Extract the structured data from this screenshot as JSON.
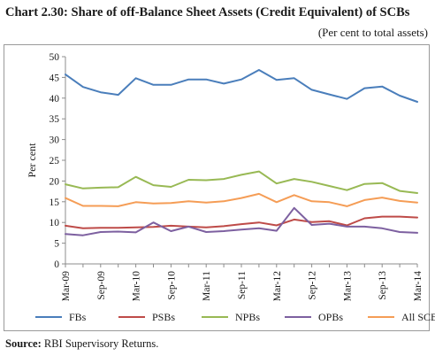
{
  "header": {
    "title": "Chart 2.30: Share of off-Balance Sheet Assets (Credit Equivalent) of SCBs",
    "subtitle": "(Per cent to total assets)"
  },
  "footer": {
    "source_label": "Source:",
    "source_text": " RBI Supervisory Returns."
  },
  "chart_data": {
    "type": "line",
    "title": "Chart 2.30: Share of off-Balance Sheet Assets (Credit Equivalent) of SCBs",
    "subtitle": "(Per cent to total assets)",
    "ylabel": "Per cent",
    "xlabel": "",
    "ylim": [
      0,
      50
    ],
    "yticks": [
      0,
      5,
      10,
      15,
      20,
      25,
      30,
      35,
      40,
      45,
      50
    ],
    "grid": false,
    "legend_position": "bottom",
    "x": [
      "Mar-09",
      "Jun-09",
      "Sep-09",
      "Dec-09",
      "Mar-10",
      "Jun-10",
      "Sep-10",
      "Dec-10",
      "Mar-11",
      "Jun-11",
      "Sep-11",
      "Dec-11",
      "Mar-12",
      "Jun-12",
      "Sep-12",
      "Dec-12",
      "Mar-13",
      "Jun-13",
      "Sep-13",
      "Dec-13",
      "Mar-14"
    ],
    "xtick_labels": [
      "Mar-09",
      "Sep-09",
      "Mar-10",
      "Sep-10",
      "Mar-11",
      "Sep-11",
      "Mar-12",
      "Sep-12",
      "Mar-13",
      "Sep-13",
      "Mar-14"
    ],
    "series": [
      {
        "name": "FBs",
        "color": "#4a7ebb",
        "values": [
          45.7,
          42.7,
          41.4,
          40.8,
          44.8,
          43.2,
          43.2,
          44.5,
          44.5,
          43.5,
          44.5,
          46.8,
          44.4,
          44.8,
          42.0,
          40.9,
          39.8,
          42.4,
          42.8,
          40.6,
          39.1
        ]
      },
      {
        "name": "PSBs",
        "color": "#be4b48",
        "values": [
          9.2,
          8.6,
          8.7,
          8.7,
          8.8,
          8.9,
          9.2,
          9.0,
          8.8,
          9.1,
          9.6,
          10.0,
          9.3,
          10.7,
          10.1,
          10.3,
          9.3,
          11.0,
          11.4,
          11.4,
          11.2
        ]
      },
      {
        "name": "NPBs",
        "color": "#98b954",
        "values": [
          19.2,
          18.2,
          18.4,
          18.5,
          21.0,
          19.0,
          18.6,
          20.3,
          20.2,
          20.5,
          21.5,
          22.3,
          19.4,
          20.5,
          19.8,
          18.8,
          17.8,
          19.3,
          19.5,
          17.6,
          17.1
        ]
      },
      {
        "name": "OPBs",
        "color": "#7d60a0",
        "values": [
          7.2,
          6.9,
          7.7,
          7.8,
          7.6,
          10.0,
          7.9,
          9.0,
          7.7,
          7.9,
          8.3,
          8.6,
          8.0,
          13.5,
          9.4,
          9.7,
          9.0,
          9.0,
          8.6,
          7.7,
          7.5
        ]
      },
      {
        "name": "All SCBs",
        "color": "#f59d56",
        "values": [
          15.9,
          14.0,
          14.0,
          13.9,
          14.9,
          14.6,
          14.7,
          15.1,
          14.8,
          15.1,
          15.9,
          16.9,
          14.9,
          16.6,
          15.1,
          14.9,
          13.9,
          15.4,
          16.0,
          15.2,
          14.8
        ]
      }
    ]
  }
}
